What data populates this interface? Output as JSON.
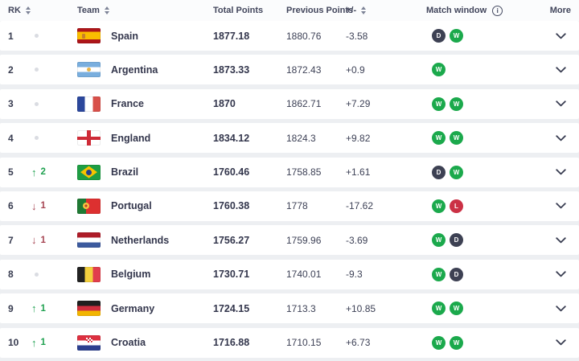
{
  "header": {
    "rk": "RK",
    "team": "Team",
    "total_points": "Total Points",
    "previous_points": "Previous Points",
    "plus_minus": "+/-",
    "match_window": "Match window",
    "more": "More"
  },
  "icons": {
    "up_arrow": "↑",
    "down_arrow": "↓",
    "info": "i"
  },
  "colors": {
    "win_badge": "#1ba94c",
    "draw_badge": "#3d4153",
    "loss_badge": "#cb3145",
    "rank_up": "#1fa150",
    "rank_down": "#a64452"
  },
  "rows": [
    {
      "rank": "1",
      "change": {
        "dir": "none",
        "value": ""
      },
      "team": "Spain",
      "flag": "spain",
      "total": "1877.18",
      "previous": "1880.76",
      "delta": "-3.58",
      "windows": [
        "D",
        "W"
      ]
    },
    {
      "rank": "2",
      "change": {
        "dir": "none",
        "value": ""
      },
      "team": "Argentina",
      "flag": "argentina",
      "total": "1873.33",
      "previous": "1872.43",
      "delta": "+0.9",
      "windows": [
        "W"
      ]
    },
    {
      "rank": "3",
      "change": {
        "dir": "none",
        "value": ""
      },
      "team": "France",
      "flag": "france",
      "total": "1870",
      "previous": "1862.71",
      "delta": "+7.29",
      "windows": [
        "W",
        "W"
      ]
    },
    {
      "rank": "4",
      "change": {
        "dir": "none",
        "value": ""
      },
      "team": "England",
      "flag": "england",
      "total": "1834.12",
      "previous": "1824.3",
      "delta": "+9.82",
      "windows": [
        "W",
        "W"
      ]
    },
    {
      "rank": "5",
      "change": {
        "dir": "up",
        "value": "2"
      },
      "team": "Brazil",
      "flag": "brazil",
      "total": "1760.46",
      "previous": "1758.85",
      "delta": "+1.61",
      "windows": [
        "D",
        "W"
      ]
    },
    {
      "rank": "6",
      "change": {
        "dir": "down",
        "value": "1"
      },
      "team": "Portugal",
      "flag": "portugal",
      "total": "1760.38",
      "previous": "1778",
      "delta": "-17.62",
      "windows": [
        "W",
        "L"
      ]
    },
    {
      "rank": "7",
      "change": {
        "dir": "down",
        "value": "1"
      },
      "team": "Netherlands",
      "flag": "netherlands",
      "total": "1756.27",
      "previous": "1759.96",
      "delta": "-3.69",
      "windows": [
        "W",
        "D"
      ]
    },
    {
      "rank": "8",
      "change": {
        "dir": "none",
        "value": ""
      },
      "team": "Belgium",
      "flag": "belgium",
      "total": "1730.71",
      "previous": "1740.01",
      "delta": "-9.3",
      "windows": [
        "W",
        "D"
      ]
    },
    {
      "rank": "9",
      "change": {
        "dir": "up",
        "value": "1"
      },
      "team": "Germany",
      "flag": "germany",
      "total": "1724.15",
      "previous": "1713.3",
      "delta": "+10.85",
      "windows": [
        "W",
        "W"
      ]
    },
    {
      "rank": "10",
      "change": {
        "dir": "up",
        "value": "1"
      },
      "team": "Croatia",
      "flag": "croatia",
      "total": "1716.88",
      "previous": "1710.15",
      "delta": "+6.73",
      "windows": [
        "W",
        "W"
      ]
    }
  ]
}
